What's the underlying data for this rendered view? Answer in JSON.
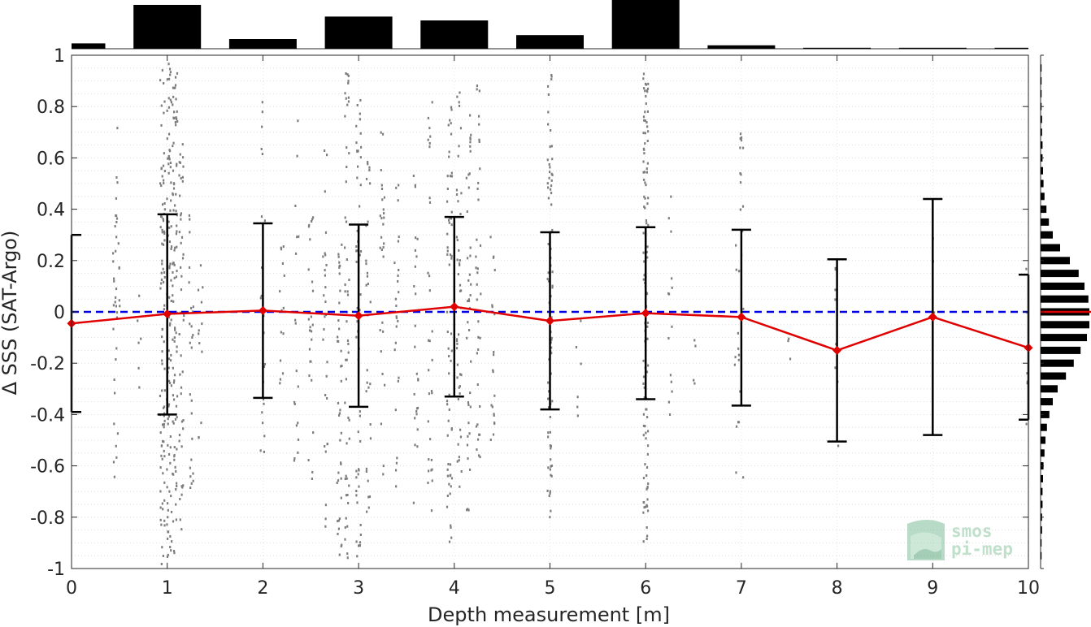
{
  "chart_data": {
    "type": "scatter",
    "xlabel": "Depth measurement [m]",
    "ylabel": "Δ SSS (SAT-Argo)",
    "xlim": [
      0,
      10
    ],
    "ylim": [
      -1,
      1
    ],
    "xticks": [
      "0",
      "1",
      "2",
      "3",
      "4",
      "5",
      "6",
      "7",
      "8",
      "9",
      "10"
    ],
    "yticks": [
      "-1",
      "-0.8",
      "-0.6",
      "-0.4",
      "-0.2",
      "0",
      "0.2",
      "0.4",
      "0.6",
      "0.8",
      "1"
    ],
    "grid": "dotted",
    "zero_line": {
      "y": 0,
      "color": "#0000e6",
      "style": "dashed"
    },
    "mean_series": {
      "color": "#e00000",
      "points": [
        {
          "x": 0,
          "y": -0.045
        },
        {
          "x": 1,
          "y": -0.008
        },
        {
          "x": 2,
          "y": 0.005
        },
        {
          "x": 3,
          "y": -0.015
        },
        {
          "x": 4,
          "y": 0.02
        },
        {
          "x": 5,
          "y": -0.035
        },
        {
          "x": 6,
          "y": -0.005
        },
        {
          "x": 7,
          "y": -0.02
        },
        {
          "x": 8,
          "y": -0.15
        },
        {
          "x": 9,
          "y": -0.02
        },
        {
          "x": 10,
          "y": -0.14
        }
      ]
    },
    "error_bars": [
      {
        "x": 0,
        "low": -0.39,
        "high": 0.3
      },
      {
        "x": 1,
        "low": -0.4,
        "high": 0.38
      },
      {
        "x": 2,
        "low": -0.335,
        "high": 0.345
      },
      {
        "x": 3,
        "low": -0.37,
        "high": 0.34
      },
      {
        "x": 4,
        "low": -0.33,
        "high": 0.37
      },
      {
        "x": 5,
        "low": -0.38,
        "high": 0.31
      },
      {
        "x": 6,
        "low": -0.34,
        "high": 0.33
      },
      {
        "x": 7,
        "low": -0.365,
        "high": 0.32
      },
      {
        "x": 8,
        "low": -0.505,
        "high": 0.205
      },
      {
        "x": 9,
        "low": -0.48,
        "high": 0.44
      },
      {
        "x": 10,
        "low": -0.42,
        "high": 0.145
      }
    ],
    "top_histogram": [
      {
        "x": 0,
        "count": 0.11
      },
      {
        "x": 1,
        "count": 0.9
      },
      {
        "x": 2,
        "count": 0.2
      },
      {
        "x": 3,
        "count": 0.66
      },
      {
        "x": 4,
        "count": 0.58
      },
      {
        "x": 5,
        "count": 0.28
      },
      {
        "x": 6,
        "count": 1.0
      },
      {
        "x": 7,
        "count": 0.07
      },
      {
        "x": 8,
        "count": 0.02
      },
      {
        "x": 9,
        "count": 0.02
      },
      {
        "x": 10,
        "count": 0.02
      }
    ],
    "right_histogram": [
      {
        "y": -0.95,
        "count": 0.02
      },
      {
        "y": -0.9,
        "count": 0.02
      },
      {
        "y": -0.85,
        "count": 0.03
      },
      {
        "y": -0.8,
        "count": 0.03
      },
      {
        "y": -0.75,
        "count": 0.04
      },
      {
        "y": -0.7,
        "count": 0.04
      },
      {
        "y": -0.65,
        "count": 0.05
      },
      {
        "y": -0.6,
        "count": 0.06
      },
      {
        "y": -0.55,
        "count": 0.08
      },
      {
        "y": -0.5,
        "count": 0.1
      },
      {
        "y": -0.45,
        "count": 0.13
      },
      {
        "y": -0.4,
        "count": 0.18
      },
      {
        "y": -0.35,
        "count": 0.25
      },
      {
        "y": -0.3,
        "count": 0.35
      },
      {
        "y": -0.25,
        "count": 0.52
      },
      {
        "y": -0.2,
        "count": 0.68
      },
      {
        "y": -0.15,
        "count": 0.82
      },
      {
        "y": -0.1,
        "count": 0.95
      },
      {
        "y": -0.05,
        "count": 1.0
      },
      {
        "y": 0.0,
        "count": 1.0
      },
      {
        "y": 0.05,
        "count": 0.98
      },
      {
        "y": 0.1,
        "count": 0.9
      },
      {
        "y": 0.15,
        "count": 0.78
      },
      {
        "y": 0.2,
        "count": 0.6
      },
      {
        "y": 0.25,
        "count": 0.4
      },
      {
        "y": 0.3,
        "count": 0.25
      },
      {
        "y": 0.35,
        "count": 0.17
      },
      {
        "y": 0.4,
        "count": 0.12
      },
      {
        "y": 0.45,
        "count": 0.08
      },
      {
        "y": 0.5,
        "count": 0.06
      },
      {
        "y": 0.55,
        "count": 0.05
      },
      {
        "y": 0.6,
        "count": 0.04
      },
      {
        "y": 0.65,
        "count": 0.04
      },
      {
        "y": 0.7,
        "count": 0.03
      },
      {
        "y": 0.75,
        "count": 0.03
      },
      {
        "y": 0.8,
        "count": 0.02
      },
      {
        "y": 0.85,
        "count": 0.02
      },
      {
        "y": 0.9,
        "count": 0.02
      },
      {
        "y": 0.95,
        "count": 0.02
      }
    ],
    "scatter_columns": [
      {
        "x": 0.45,
        "lo": -0.78,
        "hi": 0.45,
        "n": 18
      },
      {
        "x": 0.48,
        "lo": -0.5,
        "hi": 0.75,
        "n": 20
      },
      {
        "x": 0.7,
        "lo": -0.3,
        "hi": 0.1,
        "n": 6
      },
      {
        "x": 0.95,
        "lo": -1.0,
        "hi": 0.95,
        "n": 90
      },
      {
        "x": 1.02,
        "lo": -0.98,
        "hi": 0.98,
        "n": 90
      },
      {
        "x": 1.08,
        "lo": -0.95,
        "hi": 0.95,
        "n": 90
      },
      {
        "x": 1.15,
        "lo": -0.85,
        "hi": 0.7,
        "n": 45
      },
      {
        "x": 1.25,
        "lo": -0.7,
        "hi": 0.5,
        "n": 25
      },
      {
        "x": 1.35,
        "lo": -0.5,
        "hi": 0.3,
        "n": 12
      },
      {
        "x": 2.0,
        "lo": -0.65,
        "hi": 0.85,
        "n": 22
      },
      {
        "x": 2.2,
        "lo": -0.4,
        "hi": 0.3,
        "n": 14
      },
      {
        "x": 2.35,
        "lo": -0.6,
        "hi": 0.75,
        "n": 18
      },
      {
        "x": 2.5,
        "lo": -0.7,
        "hi": 0.4,
        "n": 25
      },
      {
        "x": 2.65,
        "lo": -0.85,
        "hi": 0.75,
        "n": 28
      },
      {
        "x": 2.8,
        "lo": -0.95,
        "hi": 0.3,
        "n": 40
      },
      {
        "x": 2.88,
        "lo": -1.0,
        "hi": 1.0,
        "n": 50
      },
      {
        "x": 3.0,
        "lo": -0.98,
        "hi": 0.95,
        "n": 55
      },
      {
        "x": 3.1,
        "lo": -0.9,
        "hi": 0.6,
        "n": 30
      },
      {
        "x": 3.25,
        "lo": -0.8,
        "hi": 0.7,
        "n": 28
      },
      {
        "x": 3.4,
        "lo": -0.7,
        "hi": 0.5,
        "n": 25
      },
      {
        "x": 3.6,
        "lo": -0.75,
        "hi": 0.55,
        "n": 25
      },
      {
        "x": 3.75,
        "lo": -0.85,
        "hi": 0.85,
        "n": 30
      },
      {
        "x": 3.95,
        "lo": -0.95,
        "hi": 0.85,
        "n": 60
      },
      {
        "x": 4.05,
        "lo": -0.7,
        "hi": 0.9,
        "n": 45
      },
      {
        "x": 4.15,
        "lo": -0.8,
        "hi": 0.8,
        "n": 40
      },
      {
        "x": 4.25,
        "lo": -0.6,
        "hi": 0.9,
        "n": 35
      },
      {
        "x": 4.4,
        "lo": -0.5,
        "hi": 0.3,
        "n": 20
      },
      {
        "x": 5.0,
        "lo": -0.8,
        "hi": 0.95,
        "n": 80
      },
      {
        "x": 5.3,
        "lo": -0.45,
        "hi": 0.1,
        "n": 6
      },
      {
        "x": 6.0,
        "lo": -0.9,
        "hi": 0.95,
        "n": 110
      },
      {
        "x": 6.25,
        "lo": -0.5,
        "hi": 0.65,
        "n": 14
      },
      {
        "x": 6.5,
        "lo": -0.3,
        "hi": 0.0,
        "n": 4
      },
      {
        "x": 6.95,
        "lo": -0.7,
        "hi": 0.35,
        "n": 12
      },
      {
        "x": 7.0,
        "lo": -0.68,
        "hi": 0.7,
        "n": 18
      },
      {
        "x": 7.5,
        "lo": -0.3,
        "hi": -0.1,
        "n": 3
      },
      {
        "x": 8.0,
        "lo": -0.6,
        "hi": 0.25,
        "n": 8
      },
      {
        "x": 9.0,
        "lo": -0.2,
        "hi": 0.3,
        "n": 3
      },
      {
        "x": 10.0,
        "lo": -0.55,
        "hi": 0.3,
        "n": 6
      }
    ]
  },
  "logo": {
    "line1": "smos",
    "line2": "pi-mep"
  }
}
